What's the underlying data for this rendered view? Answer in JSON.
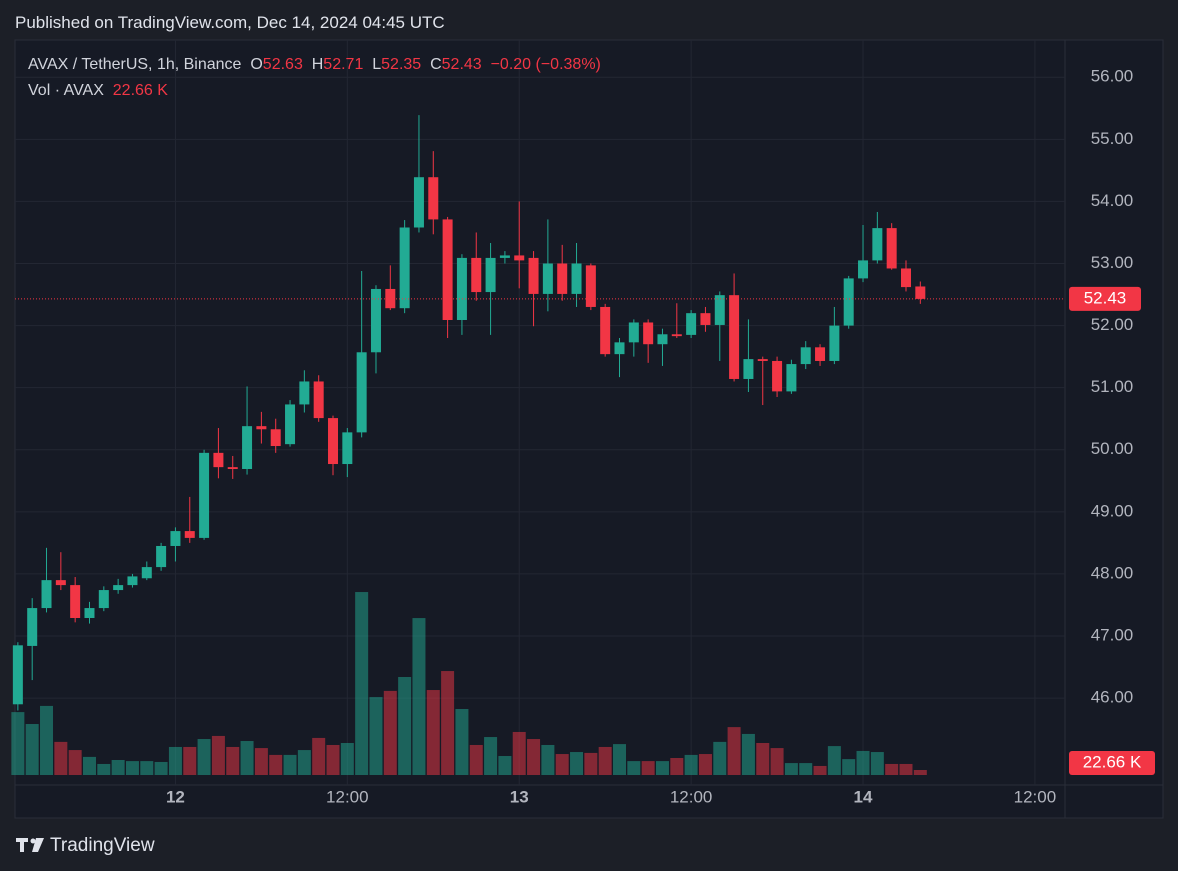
{
  "published": "Published on TradingView.com, Dec 14, 2024 04:45 UTC",
  "brand": "TradingView",
  "chart_data": {
    "type": "candlestick",
    "symbol": "AVAX / TetherUS, 1h, Binance",
    "o_label": "O",
    "h_label": "H",
    "l_label": "L",
    "c_label": "C",
    "change": "−0.20 (−0.38%)",
    "volume_title": "Vol · AVAX",
    "volume_label": "22.66 K",
    "up_color": "#22ab94",
    "down_color": "#f23645",
    "x": [
      -11,
      -10,
      -9,
      -8,
      -7,
      -6,
      -5,
      -4,
      -3,
      -2,
      -1,
      0,
      1,
      2,
      3,
      4,
      5,
      6,
      7,
      8,
      9,
      10,
      11,
      12,
      13,
      14,
      15,
      16,
      17,
      18,
      19,
      20,
      21,
      22,
      23,
      24,
      25,
      26,
      27,
      28,
      29,
      30,
      31,
      32,
      33,
      34,
      35,
      36,
      37,
      38,
      39,
      40,
      41,
      42,
      43,
      44,
      45,
      46,
      47,
      48,
      49,
      50,
      51,
      52
    ],
    "open": [
      45.9,
      46.84,
      47.45,
      47.9,
      47.82,
      47.29,
      47.45,
      47.74,
      47.82,
      47.93,
      48.11,
      48.45,
      48.69,
      48.58,
      49.95,
      49.72,
      49.69,
      50.38,
      50.33,
      50.09,
      50.73,
      51.1,
      50.51,
      49.77,
      50.28,
      51.57,
      52.59,
      52.28,
      53.58,
      54.39,
      53.71,
      52.09,
      53.09,
      52.54,
      53.09,
      53.13,
      53.09,
      52.51,
      53.0,
      52.51,
      52.97,
      52.3,
      51.54,
      51.73,
      52.05,
      51.7,
      51.86,
      51.85,
      52.2,
      52.01,
      52.49,
      51.14,
      51.46,
      51.43,
      50.94,
      51.38,
      51.65,
      51.43,
      52.0,
      52.76,
      53.05,
      53.57,
      52.92,
      52.63
    ],
    "high": [
      46.9,
      47.61,
      48.42,
      48.35,
      47.95,
      47.55,
      47.8,
      47.92,
      48.0,
      48.2,
      48.5,
      48.75,
      49.24,
      50.0,
      50.35,
      49.9,
      51.02,
      50.61,
      50.5,
      50.8,
      51.28,
      51.2,
      50.55,
      50.35,
      52.88,
      52.65,
      52.97,
      53.7,
      55.39,
      54.81,
      53.75,
      53.15,
      53.5,
      53.33,
      53.2,
      54.0,
      53.2,
      53.71,
      53.3,
      53.33,
      53.0,
      52.35,
      51.8,
      52.1,
      52.1,
      51.95,
      52.36,
      52.25,
      52.3,
      52.55,
      52.84,
      52.1,
      51.5,
      51.5,
      51.45,
      51.75,
      51.7,
      52.3,
      52.8,
      53.62,
      53.83,
      53.65,
      53.05,
      52.71
    ],
    "low": [
      45.8,
      46.29,
      47.38,
      47.74,
      47.22,
      47.2,
      47.4,
      47.68,
      47.78,
      47.9,
      48.05,
      48.2,
      48.5,
      48.55,
      49.54,
      49.53,
      49.6,
      50.1,
      49.95,
      50.05,
      50.6,
      50.45,
      49.59,
      49.56,
      50.2,
      51.23,
      52.25,
      52.2,
      53.5,
      53.47,
      51.8,
      51.85,
      52.4,
      51.85,
      53.0,
      52.6,
      51.99,
      52.23,
      52.4,
      52.3,
      52.25,
      51.5,
      51.17,
      51.5,
      51.4,
      51.35,
      51.8,
      51.8,
      51.9,
      51.43,
      51.1,
      50.93,
      50.72,
      50.85,
      50.9,
      51.3,
      51.35,
      51.38,
      51.95,
      52.7,
      53.0,
      52.9,
      52.55,
      52.35
    ],
    "close": [
      46.85,
      47.45,
      47.9,
      47.82,
      47.29,
      47.45,
      47.74,
      47.82,
      47.96,
      48.11,
      48.45,
      48.69,
      48.58,
      49.95,
      49.72,
      49.69,
      50.38,
      50.33,
      50.06,
      50.73,
      51.1,
      50.51,
      49.77,
      50.28,
      51.57,
      52.59,
      52.28,
      53.58,
      54.39,
      53.71,
      52.09,
      53.09,
      52.54,
      53.09,
      53.13,
      53.05,
      52.51,
      53.0,
      52.51,
      53.0,
      52.3,
      51.54,
      51.73,
      52.05,
      51.7,
      51.86,
      51.83,
      52.2,
      52.01,
      52.49,
      51.14,
      51.46,
      51.43,
      50.94,
      51.38,
      51.65,
      51.43,
      52.0,
      52.76,
      53.05,
      53.57,
      52.92,
      52.62,
      52.43
    ],
    "volume": [
      285,
      231,
      313,
      150,
      113,
      82,
      50,
      68,
      63,
      63,
      59,
      127,
      127,
      163,
      177,
      127,
      154,
      122,
      91,
      91,
      113,
      168,
      136,
      145,
      829,
      353,
      381,
      444,
      711,
      385,
      471,
      299,
      136,
      172,
      86,
      195,
      163,
      136,
      95,
      104,
      100,
      127,
      140,
      63,
      63,
      63,
      77,
      91,
      95,
      150,
      217,
      186,
      145,
      122,
      54,
      54,
      41,
      131,
      72,
      109,
      104,
      50,
      50,
      22.66
    ],
    "xlim": [
      -11.2,
      62.1
    ],
    "xticks": [
      {
        "value": 0,
        "label": "12"
      },
      {
        "value": 12,
        "label": "12:00"
      },
      {
        "value": 24,
        "label": "13"
      },
      {
        "value": 36,
        "label": "12:00"
      },
      {
        "value": 48,
        "label": "14"
      },
      {
        "value": 60,
        "label": "12:00"
      }
    ],
    "ylim": [
      44.6,
      56.6
    ],
    "yticks": [
      {
        "value": 46,
        "label": "46.00"
      },
      {
        "value": 47,
        "label": "47.00"
      },
      {
        "value": 48,
        "label": "48.00"
      },
      {
        "value": 49,
        "label": "49.00"
      },
      {
        "value": 50,
        "label": "50.00"
      },
      {
        "value": 51,
        "label": "51.00"
      },
      {
        "value": 52,
        "label": "52.00"
      },
      {
        "value": 53,
        "label": "53.00"
      },
      {
        "value": 54,
        "label": "54.00"
      },
      {
        "value": 55,
        "label": "55.00"
      },
      {
        "value": 56,
        "label": "56.00"
      }
    ],
    "vlim": [
      0,
      3398
    ],
    "grid": true
  }
}
